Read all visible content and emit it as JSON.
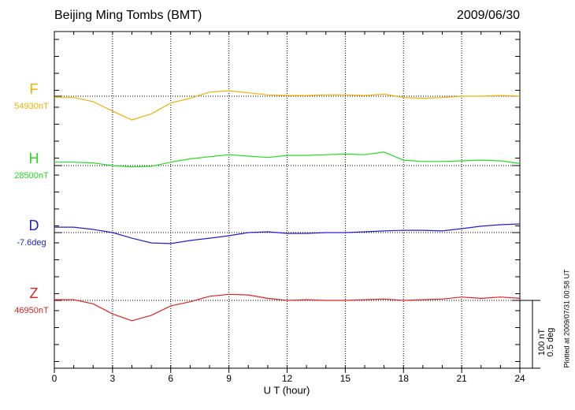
{
  "chart_data": {
    "type": "line",
    "title": "Beijing Ming Tombs (BMT)",
    "date": "2009/06/30",
    "xlabel": "U T (hour)",
    "note": "Plotted at 2009/07/31 00:58 UT",
    "xlim": [
      0,
      24
    ],
    "xticks": [
      0,
      3,
      6,
      9,
      12,
      15,
      18,
      21,
      24
    ],
    "grid": true,
    "x": [
      0,
      1,
      2,
      3,
      4,
      5,
      6,
      7,
      8,
      9,
      10,
      11,
      12,
      13,
      14,
      15,
      16,
      17,
      18,
      19,
      20,
      21,
      22,
      23,
      24
    ],
    "scale_bar": {
      "labels": [
        "100 nT",
        "0.5 deg"
      ]
    },
    "series": [
      {
        "name": "F",
        "baseline": "54930nT",
        "color": "#f0b000",
        "scale": 100,
        "values": [
          -2,
          -2,
          -8,
          -22,
          -35,
          -26,
          -10,
          -3,
          6,
          8,
          5,
          2,
          1,
          1,
          2,
          2,
          1,
          3,
          -2,
          -3,
          -2,
          0,
          0,
          1,
          0
        ]
      },
      {
        "name": "H",
        "baseline": "28500nT",
        "color": "#22dd22",
        "scale": 100,
        "values": [
          5,
          5,
          4,
          0,
          -2,
          -1,
          5,
          10,
          13,
          16,
          14,
          12,
          15,
          15,
          16,
          17,
          16,
          20,
          8,
          6,
          6,
          7,
          8,
          7,
          3
        ]
      },
      {
        "name": "D",
        "baseline": "-7.6deg",
        "color": "#2020d0",
        "scale": 0.5,
        "values": [
          0.04,
          0.04,
          0.023,
          0,
          -0.041,
          -0.076,
          -0.081,
          -0.058,
          -0.041,
          -0.023,
          0,
          0.006,
          -0.006,
          -0.006,
          0,
          0,
          0.006,
          0.012,
          0.017,
          0.017,
          0.012,
          0.029,
          0.047,
          0.058,
          0.064
        ]
      },
      {
        "name": "Z",
        "baseline": "46950nT",
        "color": "#e02020",
        "scale": 100,
        "values": [
          1,
          1,
          -5,
          -20,
          -30,
          -22,
          -8,
          -2,
          6,
          9,
          8,
          3,
          0,
          1,
          0,
          0,
          1,
          2,
          0,
          1,
          2,
          5,
          3,
          5,
          3
        ]
      }
    ]
  }
}
